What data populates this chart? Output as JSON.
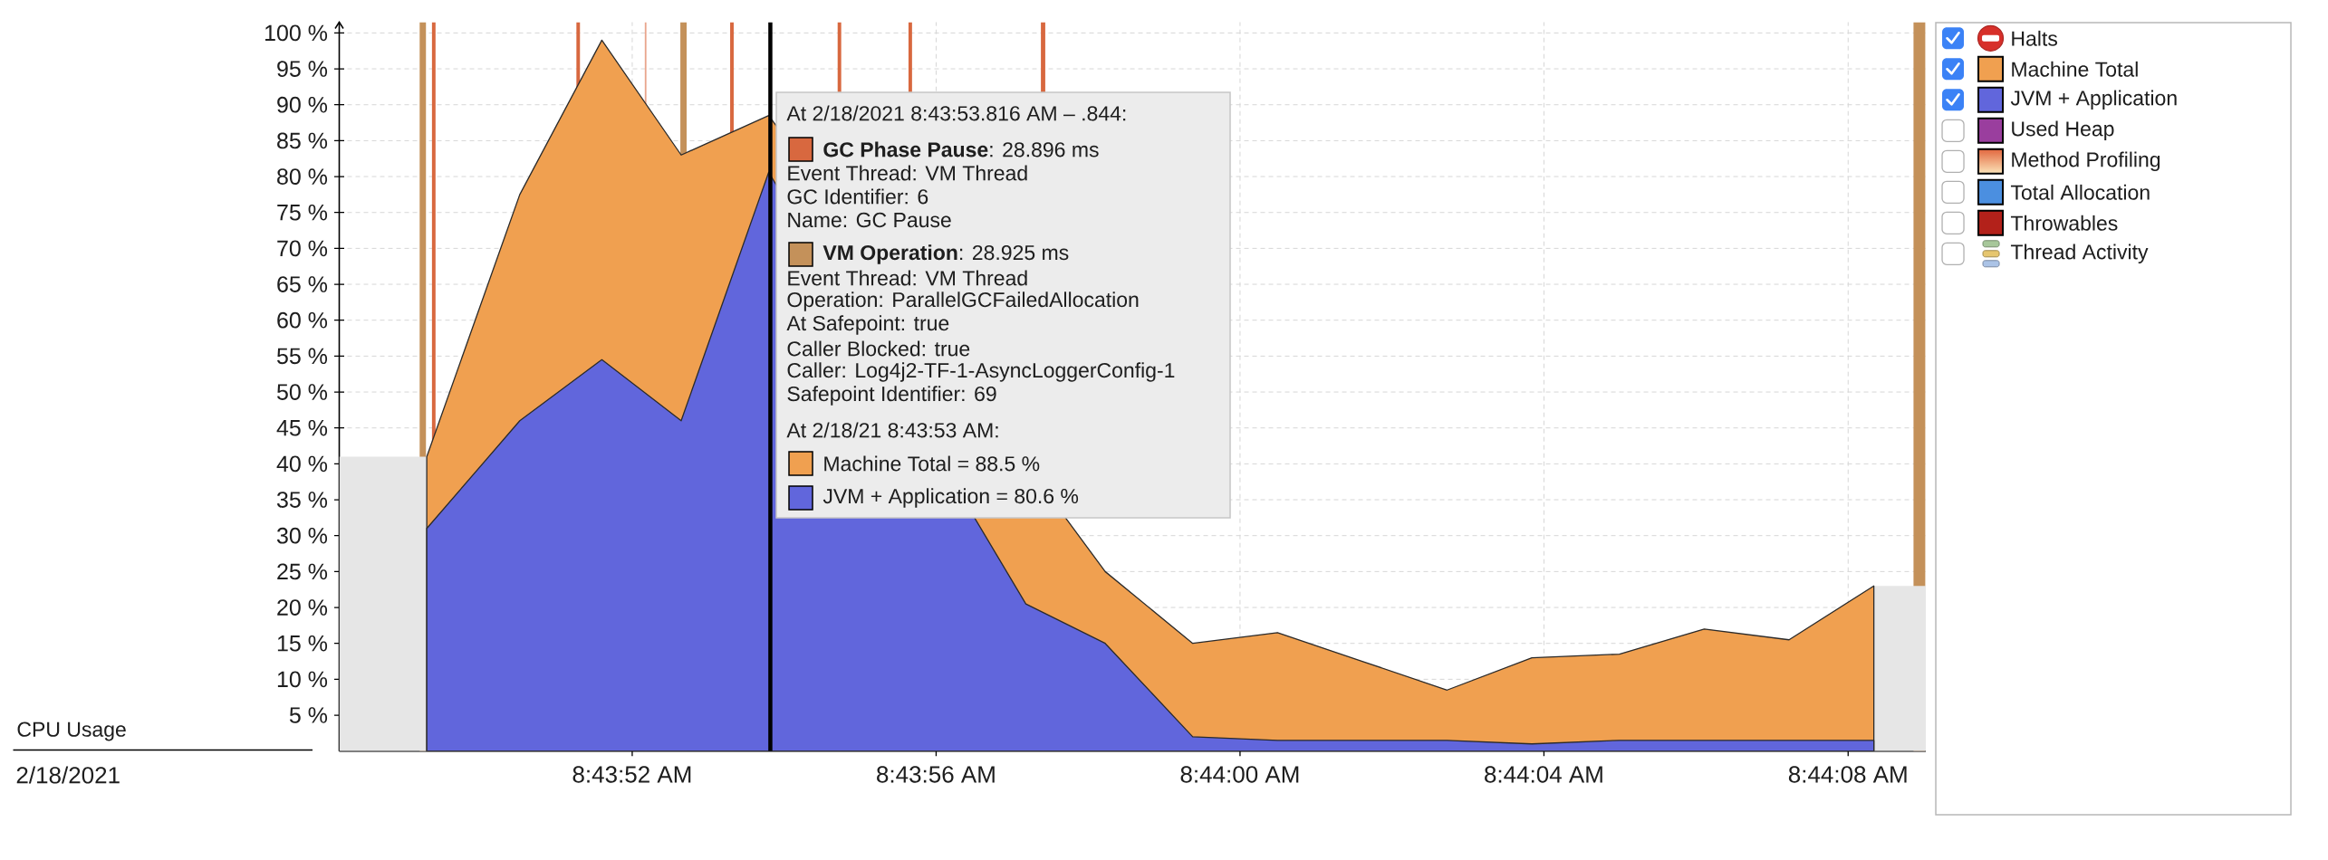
{
  "chart_data": {
    "type": "area",
    "title": "CPU Usage",
    "x": [
      8.73036,
      8.7307,
      8.731,
      8.73129,
      8.73161,
      8.73255,
      8.73284,
      8.73316,
      8.73347,
      8.73378,
      8.73409,
      8.7344,
      8.73472,
      8.73503,
      8.73534,
      8.73565
    ],
    "series": [
      {
        "name": "Machine Total",
        "color": "#f0a050",
        "values": [
          41,
          77.5,
          99,
          83,
          88.5,
          null,
          25,
          15,
          16.5,
          12.5,
          8.5,
          13,
          13.5,
          17,
          15.5,
          23
        ]
      },
      {
        "name": "JVM + Application",
        "color": "#6166dc",
        "values": [
          31,
          46,
          54.5,
          46,
          80.6,
          20.5,
          15,
          2,
          1.5,
          1.5,
          1.5,
          1,
          1.5,
          1.5,
          1.5,
          1.5
        ]
      }
    ],
    "xlim": [
      8.73004,
      8.73584
    ],
    "xticks": [
      {
        "value": 8.731111,
        "label": "8:43:52 AM"
      },
      {
        "value": 8.732222,
        "label": "8:43:56 AM"
      },
      {
        "value": 8.733333,
        "label": "8:44:00 AM"
      },
      {
        "value": 8.734444,
        "label": "8:44:04 AM"
      },
      {
        "value": 8.735556,
        "label": "8:44:08 AM"
      }
    ],
    "ylim": [
      0,
      101.5
    ],
    "yticks": [
      {
        "value": 5,
        "label": "5 %"
      },
      {
        "value": 10,
        "label": "10 %"
      },
      {
        "value": 15,
        "label": "15 %"
      },
      {
        "value": 20,
        "label": "20 %"
      },
      {
        "value": 25,
        "label": "25 %"
      },
      {
        "value": 30,
        "label": "30 %"
      },
      {
        "value": 35,
        "label": "35 %"
      },
      {
        "value": 40,
        "label": "40 %"
      },
      {
        "value": 45,
        "label": "45 %"
      },
      {
        "value": 50,
        "label": "50 %"
      },
      {
        "value": 55,
        "label": "55 %"
      },
      {
        "value": 60,
        "label": "60 %"
      },
      {
        "value": 65,
        "label": "65 %"
      },
      {
        "value": 70,
        "label": "70 %"
      },
      {
        "value": 75,
        "label": "75 %"
      },
      {
        "value": 80,
        "label": "80 %"
      },
      {
        "value": 85,
        "label": "85 %"
      },
      {
        "value": 90,
        "label": "90 %"
      },
      {
        "value": 95,
        "label": "95 %"
      },
      {
        "value": 100,
        "label": "100 %"
      }
    ],
    "grid": true,
    "legend": "right",
    "bands": [
      {
        "axis": "x",
        "from": 8.730334,
        "to": 8.730357,
        "color": "#c4915a"
      },
      {
        "axis": "x",
        "from": 8.730379,
        "to": 8.730392,
        "color": "#d8683f"
      },
      {
        "axis": "x",
        "from": 8.730907,
        "to": 8.73092,
        "color": "#d8683f"
      },
      {
        "axis": "x",
        "from": 8.731157,
        "to": 8.731163,
        "color": "#e9a58c"
      },
      {
        "axis": "x",
        "from": 8.731287,
        "to": 8.73131,
        "color": "#c4915a"
      },
      {
        "axis": "x",
        "from": 8.731469,
        "to": 8.731482,
        "color": "#d8683f"
      },
      {
        "axis": "x",
        "from": 8.731862,
        "to": 8.731875,
        "color": "#d8683f"
      },
      {
        "axis": "x",
        "from": 8.732121,
        "to": 8.732134,
        "color": "#d8683f"
      },
      {
        "axis": "x",
        "from": 8.732605,
        "to": 8.732621,
        "color": "#d8683f"
      },
      {
        "axis": "x",
        "from": 8.735795,
        "to": 8.735838,
        "color": "#c4915a"
      },
      {
        "axis": "x",
        "from": 8.73004,
        "to": 8.73036,
        "color": "#e6e6e6"
      },
      {
        "axis": "x",
        "from": 8.73565,
        "to": 8.73584,
        "color": "#e6e6e6"
      }
    ],
    "ref_lines": [
      {
        "axis": "x",
        "value": 8.731616,
        "color": "#000000"
      }
    ],
    "annotations": [
      "At 2/18/2021 8:43:53.816 AM – .844:",
      "**GC Phase Pause**: 28.896 ms",
      "Event Thread: VM Thread",
      "GC Identifier: 6",
      "Name: GC Pause",
      "**VM Operation**: 28.925 ms",
      "Event Thread: VM Thread",
      "Operation: ParallelGCFailedAllocation",
      "At Safepoint: true",
      "Caller Blocked: true",
      "Caller: Log4j2-TF-1-AsyncLoggerConfig-1",
      "Safepoint Identifier: 69",
      "At 2/18/21 8:43:53 AM:",
      "Machine Total = 88.5 %",
      "JVM + Application = 80.6 %",
      "Halts",
      "Used Heap",
      "Method Profiling",
      "Total Allocation",
      "Throwables",
      "Thread Activity",
      "2/18/2021"
    ]
  }
}
